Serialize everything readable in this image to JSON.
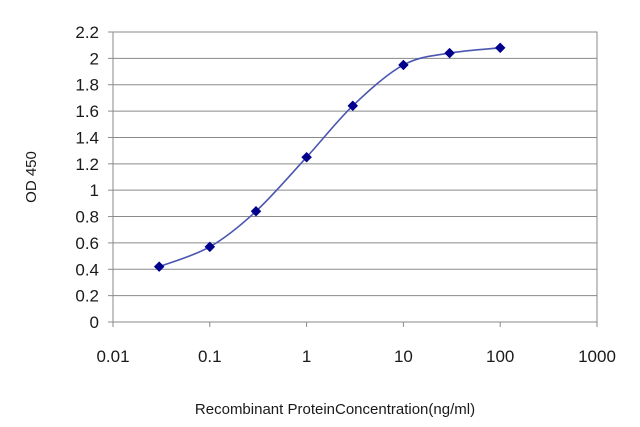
{
  "chart_data": {
    "type": "line",
    "title": "",
    "xlabel": "Recombinant ProteinConcentration(ng/ml)",
    "ylabel": "OD 450",
    "x_scale": "log",
    "xlim": [
      0.01,
      1000
    ],
    "ylim": [
      0,
      2.2
    ],
    "x_ticks": [
      "0.01",
      "0.1",
      "1",
      "10",
      "100",
      "1000"
    ],
    "y_ticks": [
      "0",
      "0.2",
      "0.4",
      "0.6",
      "0.8",
      "1",
      "1.2",
      "1.4",
      "1.6",
      "1.8",
      "2",
      "2.2"
    ],
    "grid": "horizontal",
    "legend": "none",
    "series": [
      {
        "x": [
          0.03,
          0.1,
          0.3,
          1,
          3,
          10,
          30,
          100
        ],
        "y": [
          0.42,
          0.57,
          0.84,
          1.25,
          1.64,
          1.95,
          2.04,
          2.08
        ],
        "color": "#4a56b0",
        "marker_color": "#00008b"
      }
    ]
  }
}
